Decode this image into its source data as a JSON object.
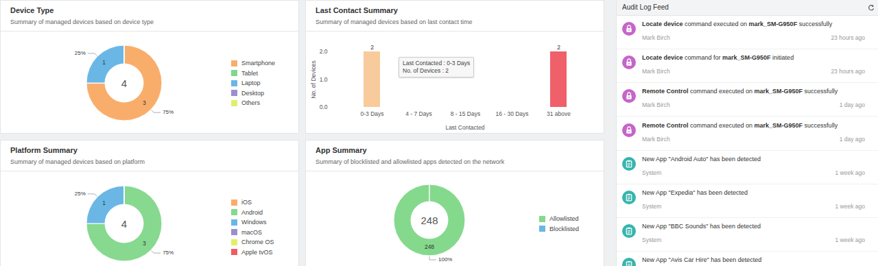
{
  "chart_data": [
    {
      "type": "donut",
      "title": "Device Type",
      "subtitle": "Summary of managed devices based on device type",
      "categories": [
        "Smartphone",
        "Tablet",
        "Laptop",
        "Desktop",
        "Others"
      ],
      "values": [
        3,
        0,
        1,
        0,
        0
      ],
      "colors": [
        "#f9ad6b",
        "#7fd88a",
        "#6ab7e6",
        "#9b8fcf",
        "#e1f06a"
      ],
      "percent_labels": [
        "75%",
        null,
        "25%",
        null,
        null
      ],
      "total": 4,
      "data_labels": true,
      "legend": "right"
    },
    {
      "type": "bar",
      "title": "Last Contact Summary",
      "subtitle": "Summary of managed devices based on last contact time",
      "categories": [
        "0-3 Days",
        "4 - 7 Days",
        "8 - 15 Days",
        "16 - 30 Days",
        "31 above"
      ],
      "values": [
        2,
        0,
        0,
        0,
        2
      ],
      "colors": [
        "#f8cb9c",
        "#f8cb9c",
        "#f8cb9c",
        "#f8cb9c",
        "#f0606a"
      ],
      "x_label": "Last Contacted",
      "y_label": "No. of Devices",
      "ylim": [
        0,
        2
      ],
      "yticks": [
        0,
        1,
        2
      ],
      "data_labels": true,
      "tooltip": [
        "Last Contacted : 0-3 Days",
        "No. of Devices : 2"
      ]
    },
    {
      "type": "donut",
      "title": "Platform Summary",
      "subtitle": "Summary of managed devices based on platform",
      "categories": [
        "iOS",
        "Android",
        "Windows",
        "macOS",
        "Chrome OS",
        "Apple tvOS"
      ],
      "values": [
        0,
        3,
        1,
        0,
        0,
        0
      ],
      "colors": [
        "#f9ad6b",
        "#86d98e",
        "#6ab7e6",
        "#9b8fcf",
        "#e1f06a",
        "#ee5c64"
      ],
      "percent_labels": [
        null,
        "75%",
        "25%",
        null,
        null,
        null
      ],
      "total": 4,
      "data_labels": true,
      "legend": "right"
    },
    {
      "type": "donut",
      "title": "App Summary",
      "subtitle": "Summary of blocklisted and allowlisted apps detected on the network",
      "categories": [
        "Allowlisted",
        "Blocklisted"
      ],
      "values": [
        248,
        0
      ],
      "colors": [
        "#84d98c",
        "#6ab7e6"
      ],
      "percent_labels": [
        "100%",
        null
      ],
      "total": 248,
      "data_labels": true,
      "legend": "right"
    }
  ],
  "audit_log": {
    "title": "Audit Log Feed",
    "entries": [
      {
        "parts": [
          {
            "text": "Locate device",
            "bold": true
          },
          {
            "text": " command executed on "
          },
          {
            "text": "mark_SM-G950F",
            "bold": true
          },
          {
            "text": " successfully"
          }
        ],
        "by": "Mark Birch",
        "time": "23 hours ago"
      },
      {
        "parts": [
          {
            "text": "Locate device",
            "bold": true
          },
          {
            "text": " command for "
          },
          {
            "text": "mark_SM-G950F",
            "bold": true
          },
          {
            "text": " initiated"
          }
        ],
        "by": "Mark Birch",
        "time": "23 hours ago"
      },
      {
        "parts": [
          {
            "text": "Remote Control",
            "bold": true
          },
          {
            "text": " command executed on "
          },
          {
            "text": "mark_SM-G950F",
            "bold": true
          },
          {
            "text": " successfully"
          }
        ],
        "by": "Mark Birch",
        "time": "1 day ago"
      },
      {
        "parts": [
          {
            "text": "Remote Control",
            "bold": true
          },
          {
            "text": " command executed on "
          },
          {
            "text": "mark_SM-G950F",
            "bold": true
          },
          {
            "text": " successfully"
          }
        ],
        "by": "Mark Birch",
        "time": "1 day ago"
      },
      {
        "parts": [
          {
            "text": "New App \"Android Auto\" has been detected"
          }
        ],
        "by": "System",
        "time": "1 week ago"
      },
      {
        "parts": [
          {
            "text": "New App \"Expedia\" has been detected"
          }
        ],
        "by": "System",
        "time": "1 week ago"
      },
      {
        "parts": [
          {
            "text": "New App \"BBC Sounds\" has been detected"
          }
        ],
        "by": "System",
        "time": "1 week ago"
      },
      {
        "parts": [
          {
            "text": "New App \"Avis Car Hire\" has been detected"
          }
        ]
      }
    ]
  }
}
